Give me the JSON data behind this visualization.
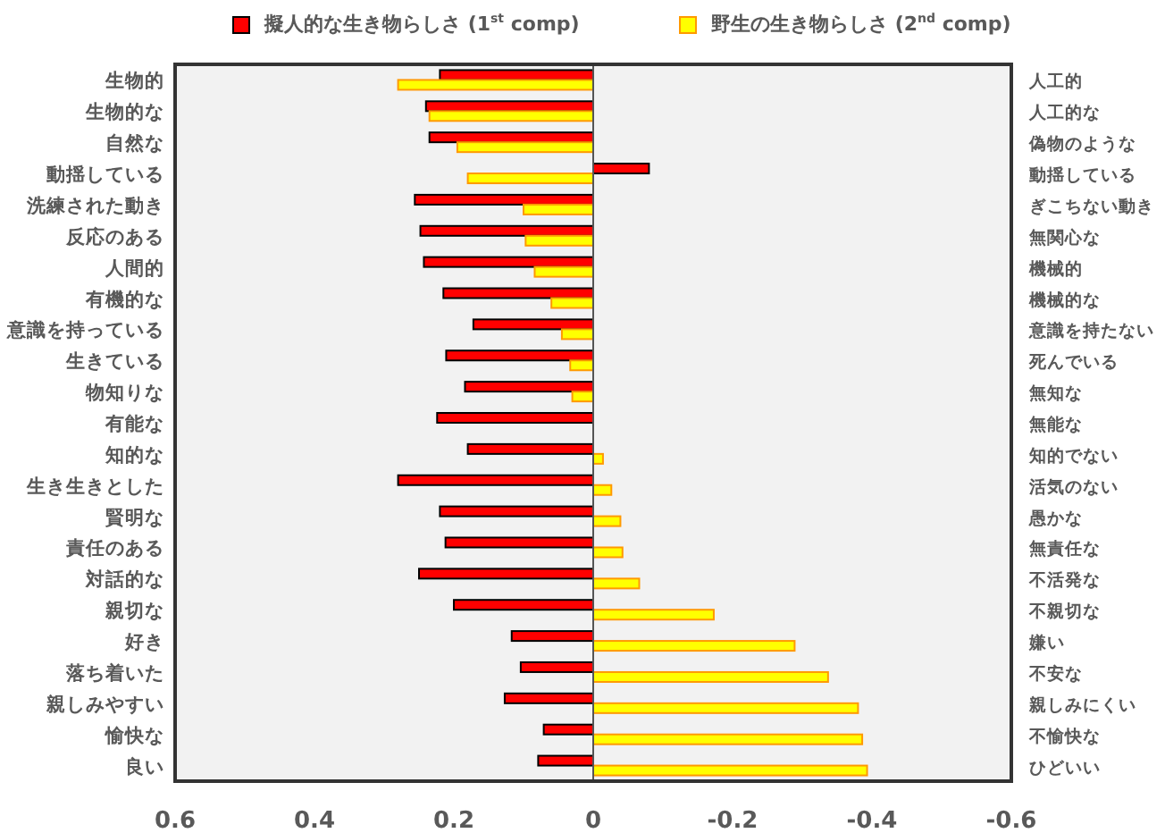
{
  "chart_data": {
    "type": "bar",
    "orientation": "horizontal",
    "categories": [
      "生物的",
      "生物的な",
      "自然な",
      "動揺している",
      "洗練された動き",
      "反応のある",
      "人間的",
      "有機的な",
      "意識を持っている",
      "生きている",
      "物知りな",
      "有能な",
      "知的な",
      "生き生きとした",
      "賢明な",
      "責任のある",
      "対話的な",
      "親切な",
      "好き",
      "落ち着いた",
      "親しみやすい",
      "愉快な",
      "良い"
    ],
    "y2_categories": [
      "人工的",
      "人工的な",
      "偽物のような",
      "動揺している",
      "ぎこちない動き",
      "無関心な",
      "機械的",
      "機械的な",
      "意識を持たない",
      "死んでいる",
      "無知な",
      "無能な",
      "知的でない",
      "活気のない",
      "愚かな",
      "無責任な",
      "不活発な",
      "不親切な",
      "嫌い",
      "不安な",
      "親しみにくい",
      "不愉快な",
      "ひどいい"
    ],
    "series": [
      {
        "name": "擬人的な生き物らしさ (1$^{st}$ comp)",
        "color": "#ff0000",
        "values": [
          0.22,
          0.24,
          0.235,
          -0.08,
          0.256,
          0.248,
          0.243,
          0.215,
          0.172,
          0.211,
          0.184,
          0.224,
          0.18,
          0.28,
          0.22,
          0.212,
          0.25,
          0.2,
          0.117,
          0.104,
          0.127,
          0.071,
          0.079
        ]
      },
      {
        "name": "野生の生き物らしさ (2$^{nd}$ comp)",
        "color": "#ffff00",
        "values": [
          0.28,
          0.235,
          0.195,
          0.18,
          0.1,
          0.097,
          0.084,
          0.06,
          0.045,
          0.033,
          0.03,
          0.0,
          -0.014,
          -0.026,
          -0.039,
          -0.042,
          -0.066,
          -0.173,
          -0.289,
          -0.337,
          -0.38,
          -0.386,
          -0.393
        ]
      }
    ],
    "xlim": [
      0.6,
      -0.6
    ],
    "xticks": [
      0.6,
      0.4,
      0.2,
      0,
      -0.2,
      -0.4,
      -0.6
    ],
    "legend": "top"
  }
}
